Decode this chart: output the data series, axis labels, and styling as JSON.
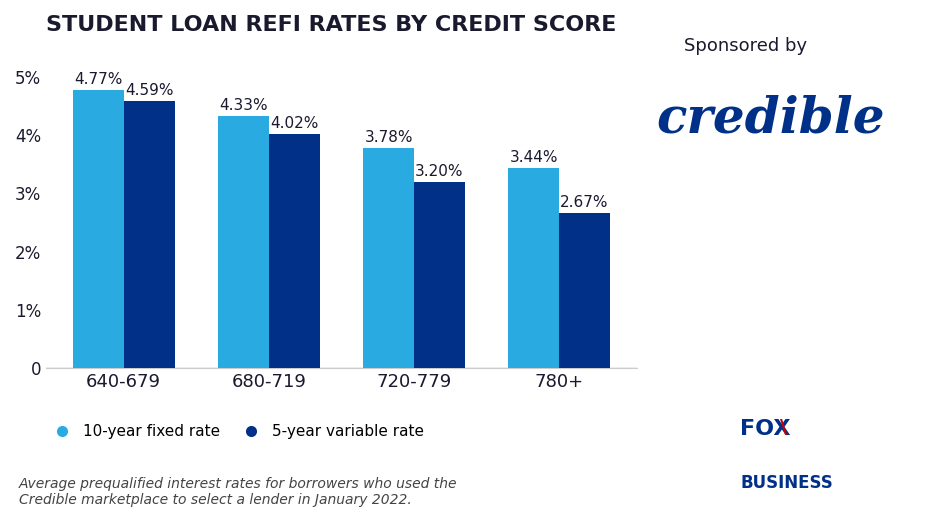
{
  "title": "STUDENT LOAN REFI RATES BY CREDIT SCORE",
  "categories": [
    "640-679",
    "680-719",
    "720-779",
    "780+"
  ],
  "fixed_rates": [
    4.77,
    4.33,
    3.78,
    3.44
  ],
  "variable_rates": [
    4.59,
    4.02,
    3.2,
    2.67
  ],
  "fixed_color": "#29ABE2",
  "variable_color": "#003087",
  "ylim": [
    0,
    5.5
  ],
  "yticks": [
    0,
    1,
    2,
    3,
    4,
    5
  ],
  "ytick_labels": [
    "0",
    "1%",
    "2%",
    "3%",
    "4%",
    "5%"
  ],
  "legend_fixed_label": "10-year fixed rate",
  "legend_variable_label": "5-year variable rate",
  "footnote_line1": "Average prequalified interest rates for borrowers who used the",
  "footnote_line2": "Credible marketplace to select a lender in January 2022.",
  "sponsored_text": "Sponsored by",
  "credible_text": "credible",
  "bar_width": 0.35,
  "bar_label_fontsize": 11,
  "title_fontsize": 16,
  "axis_label_fontsize": 12,
  "legend_fontsize": 11,
  "footnote_fontsize": 10,
  "bg_color": "#ffffff",
  "text_color": "#1a1a2e",
  "sponsored_fontsize": 13,
  "credible_fontsize": 36
}
